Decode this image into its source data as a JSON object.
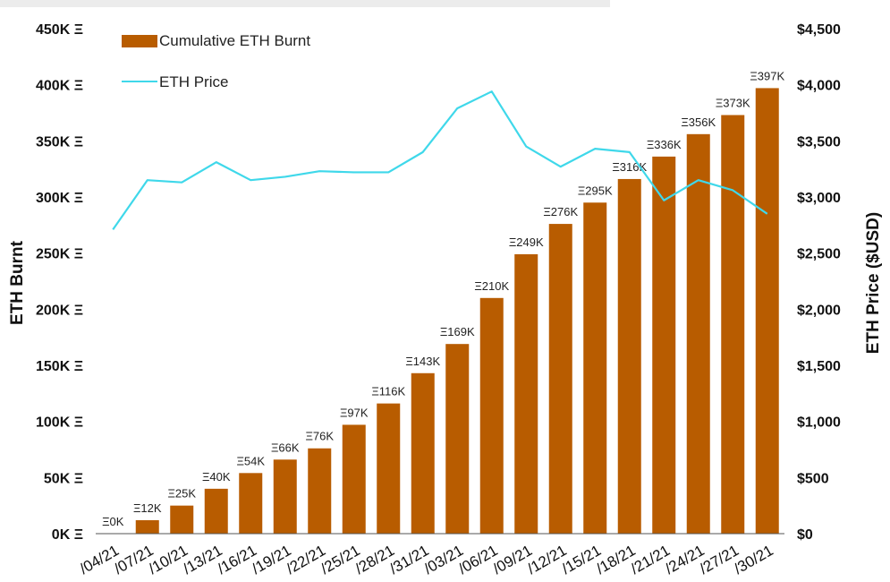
{
  "chart_data": {
    "type": "bar",
    "categories": [
      "04/21",
      "07/21",
      "10/21",
      "13/21",
      "16/21",
      "19/21",
      "22/21",
      "25/21",
      "28/21",
      "31/21",
      "03/21",
      "06/21",
      "09/21",
      "12/21",
      "15/21",
      "18/21",
      "21/21",
      "24/21",
      "27/21",
      "30/21"
    ],
    "series": [
      {
        "name": "Cumulative ETH Burnt",
        "type": "bar",
        "axis": "left",
        "color": "#b85c00",
        "values": [
          0,
          12,
          25,
          40,
          54,
          66,
          76,
          97,
          116,
          143,
          169,
          210,
          249,
          276,
          295,
          316,
          336,
          356,
          373,
          397
        ],
        "labels": [
          "Ξ0K",
          "Ξ12K",
          "Ξ25K",
          "Ξ40K",
          "Ξ54K",
          "Ξ66K",
          "Ξ76K",
          "Ξ97K",
          "Ξ116K",
          "Ξ143K",
          "Ξ169K",
          "Ξ210K",
          "Ξ249K",
          "Ξ276K",
          "Ξ295K",
          "Ξ316K",
          "Ξ336K",
          "Ξ356K",
          "Ξ373K",
          "Ξ397K"
        ]
      },
      {
        "name": "ETH Price",
        "type": "line",
        "axis": "right",
        "color": "#3fd8ea",
        "values": [
          2710,
          3150,
          3130,
          3310,
          3150,
          3180,
          3230,
          3220,
          3220,
          3400,
          3790,
          3940,
          3450,
          3270,
          3430,
          3400,
          2970,
          3150,
          3060,
          2850
        ]
      }
    ],
    "ylabel": "ETH Burnt",
    "y2label": "ETH Price ($USD)",
    "ylim": [
      0,
      450
    ],
    "y2lim": [
      0,
      4500
    ],
    "yticks": [
      0,
      50,
      100,
      150,
      200,
      250,
      300,
      350,
      400,
      450
    ],
    "ytick_labels": [
      "0K Ξ",
      "50K Ξ",
      "100K Ξ",
      "150K Ξ",
      "200K Ξ",
      "250K Ξ",
      "300K Ξ",
      "350K Ξ",
      "400K Ξ",
      "450K Ξ"
    ],
    "y2ticks": [
      0,
      500,
      1000,
      1500,
      2000,
      2500,
      3000,
      3500,
      4000,
      4500
    ],
    "y2tick_labels": [
      "$0",
      "$500",
      "$1,000",
      "$1,500",
      "$2,000",
      "$2,500",
      "$3,000",
      "$3,500",
      "$4,000",
      "$4,500"
    ],
    "xtick_labels": [
      "/04/21",
      "/07/21",
      "/10/21",
      "/13/21",
      "/16/21",
      "/19/21",
      "/22/21",
      "/25/21",
      "/28/21",
      "/31/21",
      "/03/21",
      "/06/21",
      "/09/21",
      "/12/21",
      "/15/21",
      "/18/21",
      "/21/21",
      "/24/21",
      "/27/21",
      "/30/21"
    ],
    "legend": [
      {
        "label": "Cumulative ETH Burnt",
        "kind": "bar",
        "color": "#b85c00"
      },
      {
        "label": "ETH Price",
        "kind": "line",
        "color": "#3fd8ea"
      }
    ],
    "legend_position": "top-left",
    "grid": false
  }
}
